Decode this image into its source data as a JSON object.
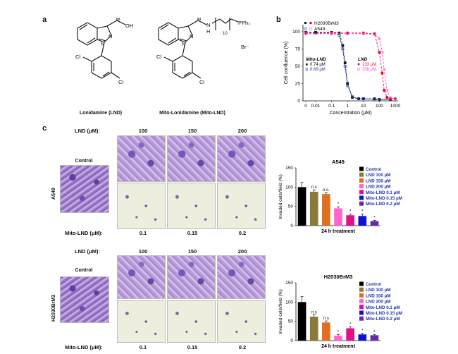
{
  "panels": {
    "a": "a",
    "b": "b",
    "c": "c"
  },
  "panel_a": {
    "lnd_caption": "Lonidamine (LND)",
    "mito_caption": "Mito-Lonidamine (Mito-LND)",
    "atoms": {
      "cooh_o": "O",
      "oh": "OH",
      "n1": "N",
      "n2": "N",
      "cl1": "Cl",
      "cl2": "Cl",
      "m_n1": "N",
      "m_n2": "N",
      "m_o": "O",
      "m_nh_n": "N",
      "m_nh_h": "H",
      "m_cl1": "Cl",
      "m_cl2": "Cl",
      "m_sub": "10",
      "m_pph3": "PPh₃",
      "m_plus": "+",
      "m_br": "Br⁻"
    }
  },
  "panel_b": {
    "xlabel": "Concentration (μM)",
    "ylabel": "Cell confluence (%)",
    "xticks": [
      "0",
      "0.01",
      "0.1",
      "1",
      "10",
      "100",
      "1000"
    ],
    "yticks": [
      "0",
      "25",
      "50",
      "75",
      "100"
    ],
    "legend": [
      "H2030BrM3",
      "A549"
    ],
    "mito_title": "Mito-LND",
    "mito_vals": [
      "0.74 μM",
      "0.69 μM"
    ],
    "lnd_title": "LND",
    "lnd_vals": [
      "133 μM",
      "208 μM"
    ]
  },
  "panel_c": {
    "lnd_label": "LND (μM):",
    "lnd_doses": [
      "100",
      "150",
      "200"
    ],
    "mito_label": "Mito-LND (μM):",
    "mito_doses_a549": [
      "0.1",
      "0.15",
      "0.2"
    ],
    "mito_label_2": "Mito-LND (μM):",
    "mito_doses_h": [
      "0.1",
      "0.15",
      "0.2"
    ],
    "control": "Control",
    "row1": "A549",
    "row2": "H2030BrM3"
  },
  "chart_data": [
    {
      "type": "line",
      "title": "",
      "xlabel": "Concentration (μM)",
      "ylabel": "Cell confluence (%)",
      "xscale": "log",
      "ylim": [
        0,
        110
      ],
      "legend": "top-left",
      "series": [
        {
          "name": "Mito-LND H2030BrM3",
          "x": [
            0,
            0.01,
            0.1,
            0.3,
            0.5,
            0.7,
            1,
            2,
            5,
            10,
            50,
            100,
            500
          ],
          "y": [
            99,
            99,
            99,
            98,
            80,
            55,
            25,
            5,
            3,
            3,
            3,
            2,
            2
          ]
        },
        {
          "name": "Mito-LND A549",
          "x": [
            0,
            0.01,
            0.1,
            0.3,
            0.5,
            0.7,
            1,
            2,
            5,
            10,
            50,
            100,
            500
          ],
          "y": [
            98,
            98,
            98,
            95,
            75,
            50,
            22,
            6,
            3,
            3,
            2,
            2,
            2
          ]
        },
        {
          "name": "LND H2030BrM3",
          "x": [
            0,
            0.1,
            1,
            10,
            50,
            100,
            150,
            200,
            300,
            500,
            1000
          ],
          "y": [
            98,
            98,
            98,
            98,
            97,
            70,
            40,
            15,
            5,
            3,
            3
          ]
        },
        {
          "name": "LND A549",
          "x": [
            0,
            0.1,
            1,
            10,
            50,
            100,
            150,
            200,
            300,
            500,
            1000
          ],
          "y": [
            97,
            97,
            97,
            97,
            96,
            90,
            70,
            45,
            15,
            4,
            3
          ]
        }
      ]
    },
    {
      "type": "bar",
      "title": "A549",
      "xlabel": "24 h treatment",
      "ylabel": "Invaded cells/field (%)",
      "ylim": [
        0,
        150
      ],
      "yticks": [
        "0",
        "50",
        "100",
        "150"
      ],
      "categories": [
        "Control",
        "LND 100 μM",
        "LND 150 μM",
        "LND 200 μM",
        "Mito-LND 0.1 μM",
        "Mito-LND 0.15 μM",
        "Mito-LND 0.2 μM"
      ],
      "values": [
        100,
        88,
        82,
        45,
        27,
        25,
        12
      ],
      "errors": [
        12,
        5,
        4,
        4,
        3,
        5,
        2
      ],
      "annotations": [
        "",
        "n.s",
        "n.s.",
        "*",
        "*",
        "*",
        "*"
      ],
      "colors": [
        "#000000",
        "#8a7a3a",
        "#e07020",
        "#ff66cc",
        "#e0108a",
        "#1010d0",
        "#6a2aa8"
      ],
      "legend": "right"
    },
    {
      "type": "bar",
      "title": "H2030BrM3",
      "xlabel": "24 h treatment",
      "ylabel": "Invaded cells/field (%)",
      "ylim": [
        0,
        150
      ],
      "yticks": [
        "0",
        "50",
        "100",
        "150"
      ],
      "categories": [
        "Control",
        "LND 100 μM",
        "LND 150 μM",
        "LND 200 μM",
        "Mito-LND 0.1 μM",
        "Mito-LND 0.15 μM",
        "Mito-LND 0.2 μM"
      ],
      "values": [
        100,
        62,
        47,
        13,
        32,
        16,
        14
      ],
      "errors": [
        14,
        5,
        4,
        3,
        4,
        3,
        2
      ],
      "annotations": [
        "",
        "n.s",
        "n.s",
        "*",
        "*",
        "*",
        "*"
      ],
      "colors": [
        "#000000",
        "#8a7a3a",
        "#e07020",
        "#ff66cc",
        "#e0108a",
        "#1010d0",
        "#6a2aa8"
      ],
      "legend": "right"
    }
  ]
}
